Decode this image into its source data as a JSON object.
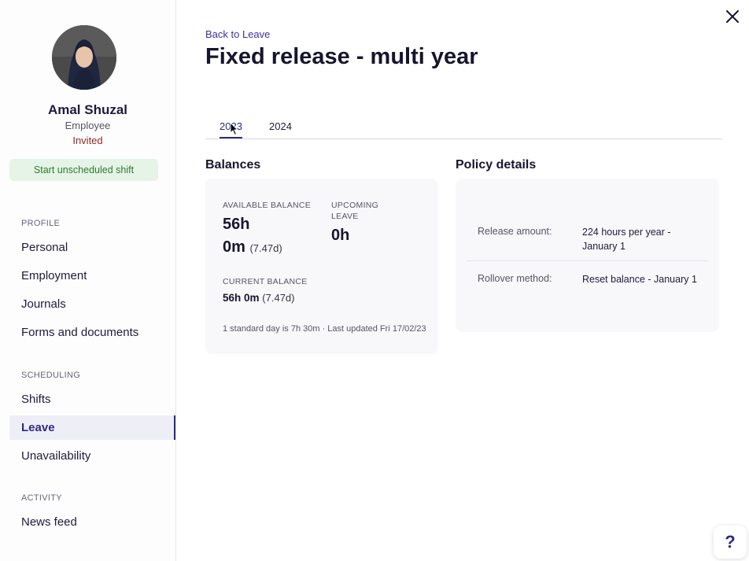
{
  "profile": {
    "name": "Amal Shuzal",
    "role": "Employee",
    "status": "Invited",
    "start_shift_label": "Start unscheduled shift"
  },
  "sidebar": {
    "sections": [
      {
        "heading": "PROFILE",
        "items": [
          "Personal",
          "Employment",
          "Journals",
          "Forms and documents"
        ]
      },
      {
        "heading": "SCHEDULING",
        "items": [
          "Shifts",
          "Leave",
          "Unavailability"
        ]
      },
      {
        "heading": "ACTIVITY",
        "items": [
          "News feed"
        ]
      }
    ],
    "active_item": "Leave"
  },
  "header": {
    "back_label": "Back to Leave",
    "title": "Fixed release - multi year"
  },
  "tabs": [
    {
      "label": "2023",
      "active": true
    },
    {
      "label": "2024",
      "active": false
    }
  ],
  "balances": {
    "heading": "Balances",
    "available_label": "AVAILABLE BALANCE",
    "available_hours": "56h",
    "available_minutes": "0m",
    "available_days": "(7.47d)",
    "upcoming_label_1": "UPCOMING",
    "upcoming_label_2": "LEAVE",
    "upcoming_value": "0h",
    "current_label": "CURRENT BALANCE",
    "current_value": "56h 0m",
    "current_days": "(7.47d)",
    "footnote": "1 standard day is 7h 30m · Last updated Fri 17/02/23"
  },
  "policy": {
    "heading": "Policy details",
    "rows": [
      {
        "label": "Release amount:",
        "value": "224 hours per year - January 1"
      },
      {
        "label": "Rollover method:",
        "value": "Reset balance - January 1"
      }
    ]
  },
  "help_label": "?",
  "colors": {
    "accent": "#2e2a84",
    "shift_button_bg": "#e6f3e7",
    "shift_button_text": "#2f7a36",
    "invited": "#8b2a2a",
    "card_bg": "#f8f8fb"
  },
  "icons": {
    "close": "close-icon",
    "help": "help-icon",
    "cursor": "mouse-cursor-icon"
  }
}
